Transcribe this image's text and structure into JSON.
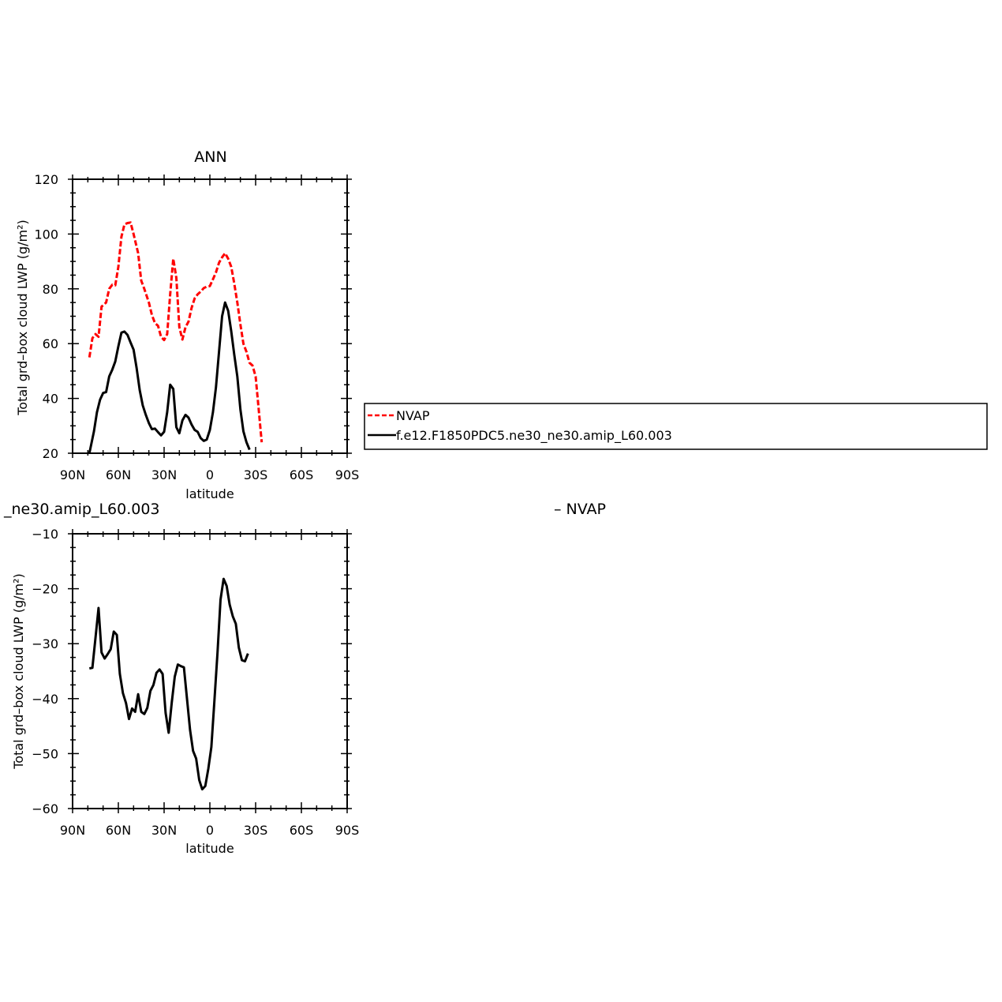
{
  "chart_data": [
    {
      "type": "line",
      "title": "ANN",
      "xlabel": "latitude",
      "ylabel": "Total grd–box cloud LWP (g/m²)",
      "xlim": [
        -90,
        90
      ],
      "ylim": [
        20,
        120
      ],
      "xticks": [
        {
          "value": -90,
          "label": "90N"
        },
        {
          "value": -60,
          "label": "60N"
        },
        {
          "value": -30,
          "label": "30N"
        },
        {
          "value": 0,
          "label": "0"
        },
        {
          "value": 30,
          "label": "30S"
        },
        {
          "value": 60,
          "label": "60S"
        },
        {
          "value": 90,
          "label": "90S"
        }
      ],
      "yticks": [
        20,
        40,
        60,
        80,
        100,
        120
      ],
      "legend_position": "right",
      "series": [
        {
          "name": "NVAP",
          "color": "#ff0000",
          "dash": "dashed",
          "points": [
            [
              -79,
              55
            ],
            [
              -77,
              62
            ],
            [
              -75,
              63.5
            ],
            [
              -73,
              62.5
            ],
            [
              -71,
              73.5
            ],
            [
              -68,
              75
            ],
            [
              -66,
              80
            ],
            [
              -64,
              81.5
            ],
            [
              -62,
              81.3
            ],
            [
              -60,
              88
            ],
            [
              -58,
              99
            ],
            [
              -56,
              103.5
            ],
            [
              -54,
              104
            ],
            [
              -52,
              104.2
            ],
            [
              -50,
              100
            ],
            [
              -47,
              93
            ],
            [
              -45,
              83
            ],
            [
              -43,
              80
            ],
            [
              -40,
              75
            ],
            [
              -38,
              70.5
            ],
            [
              -36,
              67.5
            ],
            [
              -34,
              66.5
            ],
            [
              -32,
              62.5
            ],
            [
              -30,
              61.3
            ],
            [
              -28,
              63.5
            ],
            [
              -26,
              78
            ],
            [
              -24,
              91
            ],
            [
              -22,
              84
            ],
            [
              -20,
              66
            ],
            [
              -18,
              61.5
            ],
            [
              -16,
              66
            ],
            [
              -14,
              68
            ],
            [
              -12,
              73
            ],
            [
              -10,
              76.5
            ],
            [
              -8,
              78
            ],
            [
              -6,
              79
            ],
            [
              -4,
              80.3
            ],
            [
              -2,
              80.8
            ],
            [
              0,
              81
            ],
            [
              2,
              83.5
            ],
            [
              4,
              86
            ],
            [
              6,
              89.5
            ],
            [
              8,
              91.5
            ],
            [
              10,
              93
            ],
            [
              12,
              91
            ],
            [
              14,
              88
            ],
            [
              16,
              82
            ],
            [
              18,
              75
            ],
            [
              20,
              67
            ],
            [
              22,
              60
            ],
            [
              24,
              57
            ],
            [
              26,
              53
            ],
            [
              28,
              52
            ],
            [
              30,
              48
            ],
            [
              32,
              36
            ],
            [
              34,
              24
            ]
          ]
        },
        {
          "name": "f.e12.F1850PDC5.ne30_ne30.amip_L60.003",
          "color": "#000000",
          "dash": "solid",
          "points": [
            [
              -79,
              20
            ],
            [
              -76,
              28
            ],
            [
              -74,
              35
            ],
            [
              -72,
              39.5
            ],
            [
              -70,
              42
            ],
            [
              -68,
              42.3
            ],
            [
              -66,
              48
            ],
            [
              -64,
              50.5
            ],
            [
              -62,
              53.5
            ],
            [
              -60,
              59
            ],
            [
              -58,
              64
            ],
            [
              -56,
              64.4
            ],
            [
              -54,
              63.2
            ],
            [
              -52,
              60.4
            ],
            [
              -50,
              57.8
            ],
            [
              -48,
              51
            ],
            [
              -46,
              43
            ],
            [
              -44,
              37.5
            ],
            [
              -42,
              34
            ],
            [
              -40,
              31
            ],
            [
              -38,
              28.8
            ],
            [
              -36,
              29
            ],
            [
              -34,
              27.7
            ],
            [
              -32,
              26.5
            ],
            [
              -30,
              27.8
            ],
            [
              -28,
              35
            ],
            [
              -26,
              45
            ],
            [
              -24,
              43.5
            ],
            [
              -22,
              29.5
            ],
            [
              -20,
              27.3
            ],
            [
              -18,
              32
            ],
            [
              -16,
              34
            ],
            [
              -14,
              33
            ],
            [
              -12,
              30.5
            ],
            [
              -10,
              28.5
            ],
            [
              -8,
              27.8
            ],
            [
              -6,
              25.5
            ],
            [
              -4,
              24.5
            ],
            [
              -2,
              25
            ],
            [
              0,
              28.5
            ],
            [
              2,
              35
            ],
            [
              4,
              44
            ],
            [
              6,
              57
            ],
            [
              8,
              70
            ],
            [
              10,
              75
            ],
            [
              12,
              72
            ],
            [
              14,
              64.5
            ],
            [
              16,
              56
            ],
            [
              18,
              48
            ],
            [
              20,
              36
            ],
            [
              22,
              28
            ],
            [
              24,
              24
            ],
            [
              26,
              21.3
            ]
          ]
        }
      ]
    },
    {
      "type": "line",
      "title": "_ne30.amip_L60.003",
      "title_right": "– NVAP",
      "xlabel": "latitude",
      "ylabel": "Total grd–box cloud LWP (g/m²)",
      "xlim": [
        -90,
        90
      ],
      "ylim": [
        -60,
        -10
      ],
      "xticks": [
        {
          "value": -90,
          "label": "90N"
        },
        {
          "value": -60,
          "label": "60N"
        },
        {
          "value": -30,
          "label": "30N"
        },
        {
          "value": 0,
          "label": "0"
        },
        {
          "value": 30,
          "label": "30S"
        },
        {
          "value": 60,
          "label": "60S"
        },
        {
          "value": 90,
          "label": "90S"
        }
      ],
      "yticks": [
        -60,
        -50,
        -40,
        -30,
        -20,
        -10
      ],
      "series": [
        {
          "color": "#000000",
          "dash": "solid",
          "points": [
            [
              -79,
              -34.5
            ],
            [
              -77,
              -34.4
            ],
            [
              -75,
              -29
            ],
            [
              -73,
              -23.5
            ],
            [
              -71,
              -31.6
            ],
            [
              -69,
              -32.7
            ],
            [
              -67,
              -31.9
            ],
            [
              -65,
              -31
            ],
            [
              -63,
              -27.8
            ],
            [
              -61,
              -28.4
            ],
            [
              -59,
              -35.5
            ],
            [
              -57,
              -39
            ],
            [
              -55,
              -40.8
            ],
            [
              -53,
              -43.7
            ],
            [
              -51,
              -41.8
            ],
            [
              -49,
              -42.4
            ],
            [
              -47,
              -39.2
            ],
            [
              -45,
              -42.4
            ],
            [
              -43,
              -42.8
            ],
            [
              -41,
              -41.7
            ],
            [
              -39,
              -38.6
            ],
            [
              -37,
              -37.5
            ],
            [
              -35,
              -35.3
            ],
            [
              -33,
              -34.7
            ],
            [
              -31,
              -35.5
            ],
            [
              -29,
              -42.6
            ],
            [
              -27,
              -46.2
            ],
            [
              -25,
              -40.7
            ],
            [
              -23,
              -36
            ],
            [
              -21,
              -33.8
            ],
            [
              -19,
              -34.1
            ],
            [
              -17,
              -34.3
            ],
            [
              -15,
              -40
            ],
            [
              -13,
              -45.7
            ],
            [
              -11,
              -49.5
            ],
            [
              -9,
              -50.9
            ],
            [
              -7,
              -54.8
            ],
            [
              -5,
              -56.5
            ],
            [
              -3,
              -55.9
            ],
            [
              -1,
              -52.7
            ],
            [
              1,
              -48.8
            ],
            [
              3,
              -40.3
            ],
            [
              5,
              -31.6
            ],
            [
              7,
              -22
            ],
            [
              9,
              -18.2
            ],
            [
              11,
              -19.5
            ],
            [
              13,
              -22.9
            ],
            [
              15,
              -25
            ],
            [
              17,
              -26.4
            ],
            [
              19,
              -30.7
            ],
            [
              21,
              -33
            ],
            [
              23,
              -33.2
            ],
            [
              25,
              -31.8
            ]
          ]
        }
      ]
    }
  ]
}
